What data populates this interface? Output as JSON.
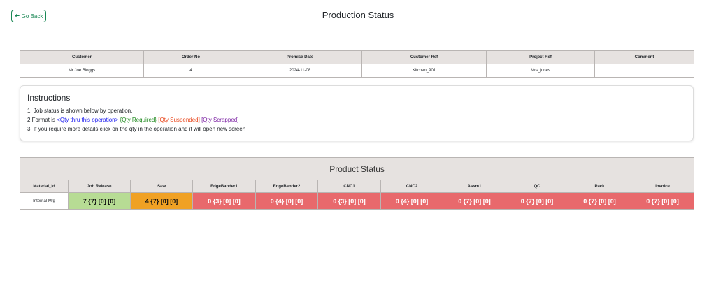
{
  "header": {
    "back_label": "Go Back",
    "title": "Production Status"
  },
  "order_table": {
    "headers": [
      "Customer",
      "Order No",
      "Promise Date",
      "Customer Ref",
      "Project Ref",
      "Comment"
    ],
    "row": [
      "Mr Joe Bloggs",
      "4",
      "2024-11-08",
      "Kitchen_901",
      "Mrs_jones",
      ""
    ]
  },
  "instructions": {
    "title": "Instructions",
    "line1": "1. Job status is shown below by operation.",
    "line2_prefix": "2.Format is ",
    "fmt_thru": "<Qty thru this operation>",
    "fmt_required": "{Qty Required}",
    "fmt_suspended": "[Qty Suspended]",
    "fmt_scrapped": "[Qty Scrapped]",
    "line3": "3. If you require more details click on the qty in the operation and it will open new screen"
  },
  "product_status": {
    "title": "Product Status",
    "columns": [
      "Material_id",
      "Job Release",
      "Saw",
      "EdgeBander1",
      "EdgeBander2",
      "CNC1",
      "CNC2",
      "Assm1",
      "QC",
      "Pack",
      "Invoice"
    ],
    "row": {
      "material": "Internal Mfg",
      "cells": [
        {
          "text": "7 {7} [0] [0]",
          "status": "green"
        },
        {
          "text": "4 {7} [0] [0]",
          "status": "orange"
        },
        {
          "text": "0 {3} [0] [0]",
          "status": "red"
        },
        {
          "text": "0 {4} [0] [0]",
          "status": "red"
        },
        {
          "text": "0 {3} [0] [0]",
          "status": "red"
        },
        {
          "text": "0 {4} [0] [0]",
          "status": "red"
        },
        {
          "text": "0 {7} [0] [0]",
          "status": "red"
        },
        {
          "text": "0 {7} [0] [0]",
          "status": "red"
        },
        {
          "text": "0 {7} [0] [0]",
          "status": "red"
        },
        {
          "text": "0 {7} [0] [0]",
          "status": "red"
        }
      ]
    }
  },
  "colors": {
    "green": "#b7dc94",
    "orange": "#f0a124",
    "red": "#e8696c",
    "header_bg": "#e6e2e0",
    "accent": "#198754"
  },
  "icons": {
    "back": "arrow-left-icon"
  }
}
